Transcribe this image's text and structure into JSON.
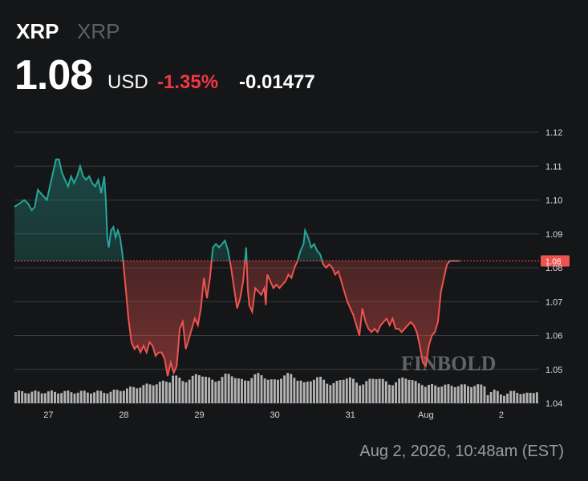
{
  "header": {
    "symbol": "XRP",
    "name": "XRP",
    "price": "1.08",
    "currency": "USD",
    "change_pct": "-1.35%",
    "change_abs": "-0.01477"
  },
  "timestamp": "Aug 2, 2026, 10:48am (EST)",
  "watermark": "FINBOLD",
  "colors": {
    "up": "#26a69a",
    "down": "#ef5350",
    "pct": "#f23645",
    "background": "#151617"
  },
  "chart_data": {
    "type": "line",
    "title": "",
    "xlabel": "",
    "ylabel": "",
    "ylim": [
      1.04,
      1.12
    ],
    "y_ticks": [
      "1.04",
      "1.05",
      "1.06",
      "1.07",
      "1.08",
      "1.09",
      "1.10",
      "1.11",
      "1.12"
    ],
    "x_ticks": [
      {
        "label": "27",
        "x": 1
      },
      {
        "label": "28",
        "x": 2
      },
      {
        "label": "29",
        "x": 3
      },
      {
        "label": "30",
        "x": 4
      },
      {
        "label": "31",
        "x": 5
      },
      {
        "label": "Aug",
        "x": 6
      },
      {
        "label": "2",
        "x": 7
      }
    ],
    "x_range": [
      0.55,
      7.5
    ],
    "last_price_label": "1.08",
    "last_price": 1.082,
    "grid": true,
    "series": [
      {
        "color_rule": "green above 1.082, red below",
        "points": [
          [
            0.55,
            1.098
          ],
          [
            0.62,
            1.099
          ],
          [
            0.68,
            1.1
          ],
          [
            0.73,
            1.099
          ],
          [
            0.78,
            1.097
          ],
          [
            0.82,
            1.098
          ],
          [
            0.86,
            1.103
          ],
          [
            0.9,
            1.102
          ],
          [
            0.94,
            1.101
          ],
          [
            0.98,
            1.1
          ],
          [
            1.02,
            1.104
          ],
          [
            1.06,
            1.108
          ],
          [
            1.1,
            1.112
          ],
          [
            1.14,
            1.112
          ],
          [
            1.18,
            1.108
          ],
          [
            1.22,
            1.106
          ],
          [
            1.26,
            1.104
          ],
          [
            1.3,
            1.107
          ],
          [
            1.34,
            1.105
          ],
          [
            1.38,
            1.107
          ],
          [
            1.42,
            1.11
          ],
          [
            1.46,
            1.107
          ],
          [
            1.5,
            1.106
          ],
          [
            1.54,
            1.107
          ],
          [
            1.58,
            1.105
          ],
          [
            1.62,
            1.104
          ],
          [
            1.66,
            1.106
          ],
          [
            1.7,
            1.102
          ],
          [
            1.74,
            1.107
          ],
          [
            1.76,
            1.1
          ],
          [
            1.78,
            1.089
          ],
          [
            1.8,
            1.086
          ],
          [
            1.83,
            1.091
          ],
          [
            1.86,
            1.092
          ],
          [
            1.89,
            1.089
          ],
          [
            1.92,
            1.091
          ],
          [
            1.95,
            1.089
          ],
          [
            1.98,
            1.084
          ],
          [
            2.02,
            1.075
          ],
          [
            2.06,
            1.065
          ],
          [
            2.1,
            1.058
          ],
          [
            2.14,
            1.056
          ],
          [
            2.18,
            1.057
          ],
          [
            2.22,
            1.055
          ],
          [
            2.26,
            1.057
          ],
          [
            2.3,
            1.055
          ],
          [
            2.34,
            1.058
          ],
          [
            2.38,
            1.057
          ],
          [
            2.42,
            1.054
          ],
          [
            2.46,
            1.055
          ],
          [
            2.5,
            1.055
          ],
          [
            2.54,
            1.053
          ],
          [
            2.58,
            1.048
          ],
          [
            2.62,
            1.052
          ],
          [
            2.66,
            1.049
          ],
          [
            2.7,
            1.051
          ],
          [
            2.74,
            1.062
          ],
          [
            2.78,
            1.064
          ],
          [
            2.82,
            1.056
          ],
          [
            2.86,
            1.059
          ],
          [
            2.9,
            1.062
          ],
          [
            2.94,
            1.065
          ],
          [
            2.98,
            1.063
          ],
          [
            3.02,
            1.068
          ],
          [
            3.06,
            1.077
          ],
          [
            3.1,
            1.071
          ],
          [
            3.14,
            1.077
          ],
          [
            3.18,
            1.086
          ],
          [
            3.22,
            1.087
          ],
          [
            3.26,
            1.086
          ],
          [
            3.3,
            1.087
          ],
          [
            3.34,
            1.088
          ],
          [
            3.38,
            1.085
          ],
          [
            3.42,
            1.08
          ],
          [
            3.46,
            1.074
          ],
          [
            3.5,
            1.068
          ],
          [
            3.54,
            1.071
          ],
          [
            3.58,
            1.076
          ],
          [
            3.62,
            1.086
          ],
          [
            3.64,
            1.074
          ],
          [
            3.66,
            1.069
          ],
          [
            3.7,
            1.067
          ],
          [
            3.74,
            1.074
          ],
          [
            3.78,
            1.073
          ],
          [
            3.82,
            1.072
          ],
          [
            3.86,
            1.074
          ],
          [
            3.88,
            1.069
          ],
          [
            3.9,
            1.078
          ],
          [
            3.94,
            1.076
          ],
          [
            3.98,
            1.074
          ],
          [
            4.02,
            1.075
          ],
          [
            4.06,
            1.074
          ],
          [
            4.1,
            1.075
          ],
          [
            4.14,
            1.076
          ],
          [
            4.18,
            1.078
          ],
          [
            4.22,
            1.077
          ],
          [
            4.26,
            1.08
          ],
          [
            4.3,
            1.082
          ],
          [
            4.34,
            1.085
          ],
          [
            4.38,
            1.087
          ],
          [
            4.4,
            1.091
          ],
          [
            4.44,
            1.089
          ],
          [
            4.48,
            1.086
          ],
          [
            4.52,
            1.087
          ],
          [
            4.56,
            1.085
          ],
          [
            4.6,
            1.084
          ],
          [
            4.64,
            1.081
          ],
          [
            4.68,
            1.08
          ],
          [
            4.72,
            1.081
          ],
          [
            4.76,
            1.08
          ],
          [
            4.8,
            1.078
          ],
          [
            4.84,
            1.079
          ],
          [
            4.88,
            1.076
          ],
          [
            4.92,
            1.073
          ],
          [
            4.96,
            1.07
          ],
          [
            5.0,
            1.068
          ],
          [
            5.04,
            1.066
          ],
          [
            5.08,
            1.063
          ],
          [
            5.12,
            1.06
          ],
          [
            5.16,
            1.068
          ],
          [
            5.2,
            1.064
          ],
          [
            5.24,
            1.062
          ],
          [
            5.28,
            1.061
          ],
          [
            5.32,
            1.062
          ],
          [
            5.36,
            1.061
          ],
          [
            5.4,
            1.063
          ],
          [
            5.44,
            1.064
          ],
          [
            5.48,
            1.065
          ],
          [
            5.52,
            1.063
          ],
          [
            5.56,
            1.065
          ],
          [
            5.6,
            1.062
          ],
          [
            5.64,
            1.062
          ],
          [
            5.68,
            1.061
          ],
          [
            5.72,
            1.062
          ],
          [
            5.76,
            1.063
          ],
          [
            5.8,
            1.064
          ],
          [
            5.84,
            1.063
          ],
          [
            5.88,
            1.061
          ],
          [
            5.92,
            1.057
          ],
          [
            5.96,
            1.052
          ],
          [
            6.0,
            1.051
          ],
          [
            6.04,
            1.057
          ],
          [
            6.08,
            1.06
          ],
          [
            6.12,
            1.061
          ],
          [
            6.16,
            1.064
          ],
          [
            6.2,
            1.073
          ],
          [
            6.24,
            1.077
          ],
          [
            6.28,
            1.081
          ],
          [
            6.32,
            1.082
          ],
          [
            6.38,
            1.082
          ],
          [
            6.45,
            1.082
          ]
        ]
      }
    ]
  }
}
